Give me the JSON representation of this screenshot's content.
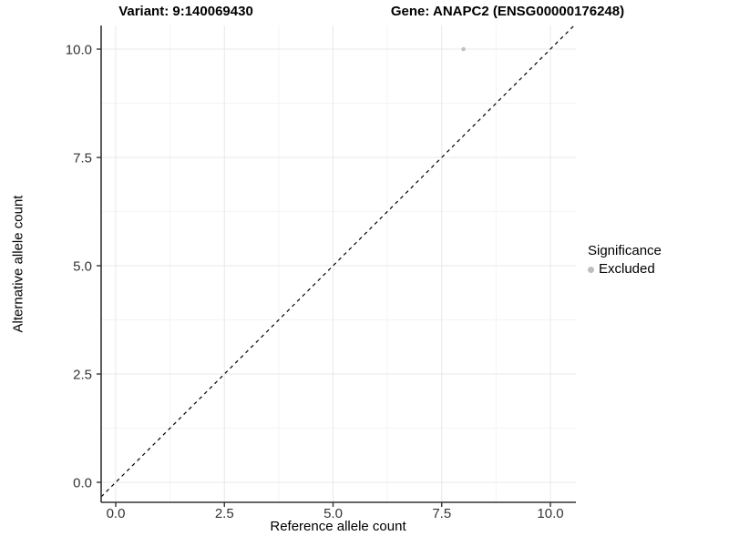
{
  "chart_data": {
    "type": "scatter",
    "title_left": "Variant: 9:140069430",
    "title_right": "Gene: ANAPC2 (ENSG00000176248)",
    "xlabel": "Reference allele count",
    "ylabel": "Alternative allele count",
    "x_ticks": [
      {
        "value": 0,
        "label": "0.0"
      },
      {
        "value": 2.5,
        "label": "2.5"
      },
      {
        "value": 5,
        "label": "5.0"
      },
      {
        "value": 7.5,
        "label": "7.5"
      },
      {
        "value": 10,
        "label": "10.0"
      }
    ],
    "y_ticks": [
      {
        "value": 0,
        "label": "0.0"
      },
      {
        "value": 2.5,
        "label": "2.5"
      },
      {
        "value": 5,
        "label": "5.0"
      },
      {
        "value": 7.5,
        "label": "7.5"
      },
      {
        "value": 10,
        "label": "10.0"
      }
    ],
    "xlim": [
      -0.34,
      10.59
    ],
    "ylim": [
      -0.46,
      10.55
    ],
    "grid": {
      "major": true,
      "minor": true
    },
    "points": [
      {
        "x": 8,
        "y": 10,
        "series": "Excluded"
      }
    ],
    "abline": {
      "slope": 1,
      "intercept": 0,
      "style": "dashed",
      "color": "#000000"
    },
    "legend": {
      "title": "Significance",
      "position": "right",
      "items": [
        {
          "label": "Excluded",
          "color": "#bebebe"
        }
      ]
    },
    "colors": {
      "point": "#c0c0c0",
      "axis": "#333333",
      "tick_label": "#333333",
      "grid_major": "#e8e8e8",
      "grid_minor": "#f4f4f4",
      "background": "#ffffff"
    }
  }
}
